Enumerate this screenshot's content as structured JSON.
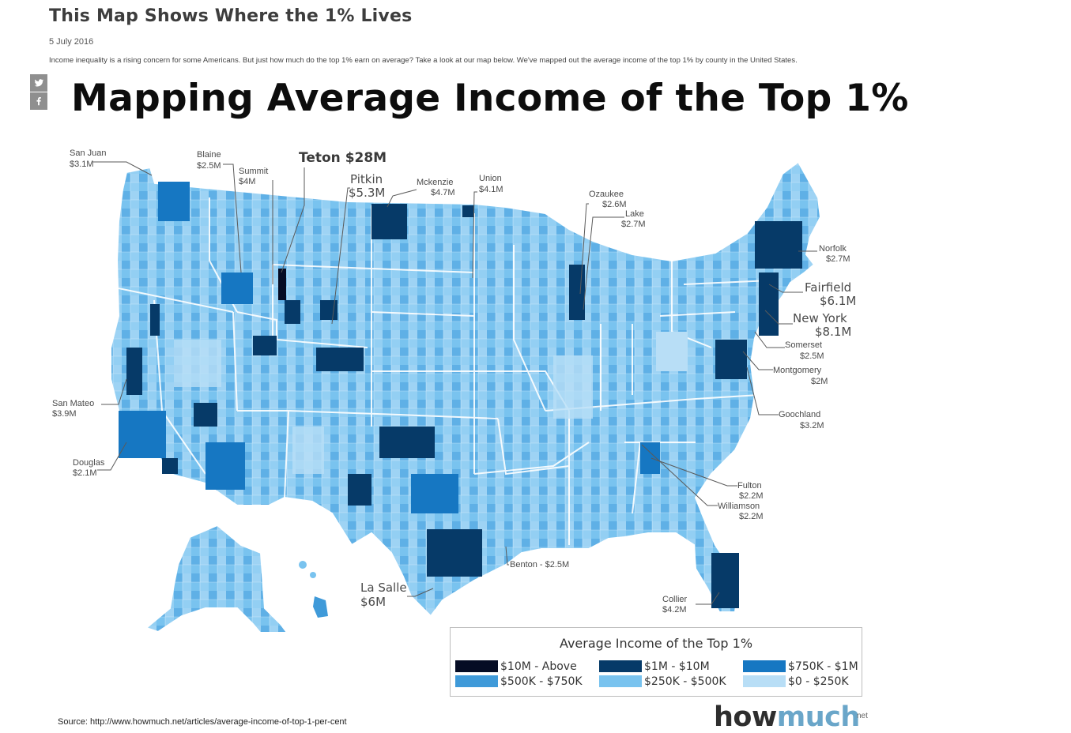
{
  "article": {
    "title": "This Map Shows Where the 1% Lives",
    "date": "5 July 2016",
    "intro": "Income inequality is a rising concern for some Americans. But just how much do the top 1% earn on average? Take a look at our map below. We've mapped out the average income of the top 1% by county in the United States."
  },
  "share": {
    "twitter_icon": "twitter-icon",
    "facebook_icon": "facebook-icon"
  },
  "infographic": {
    "title": "Mapping Average Income of the Top 1%"
  },
  "callouts": {
    "san_juan": {
      "name": "San Juan",
      "value": "$3.1M"
    },
    "blaine": {
      "name": "Blaine",
      "value": "$2.5M"
    },
    "summit": {
      "name": "Summit",
      "value": "$4M"
    },
    "teton": {
      "text": "Teton $28M"
    },
    "pitkin": {
      "name": "Pitkin",
      "value": "$5.3M"
    },
    "mckenzie": {
      "name": "Mckenzie",
      "value": "$4.7M"
    },
    "union": {
      "name": "Union",
      "value": "$4.1M"
    },
    "ozaukee": {
      "name": "Ozaukee",
      "value": "$2.6M"
    },
    "lake": {
      "name": "Lake",
      "value": "$2.7M"
    },
    "norfolk": {
      "name": "Norfolk",
      "value": "$2.7M"
    },
    "fairfield": {
      "name": "Fairfield",
      "value": "$6.1M"
    },
    "new_york": {
      "name": "New York",
      "value": "$8.1M"
    },
    "somerset": {
      "name": "Somerset",
      "value": "$2.5M"
    },
    "montgomery": {
      "name": "Montgomery",
      "value": "$2M"
    },
    "goochland": {
      "name": "Goochland",
      "value": "$3.2M"
    },
    "fulton": {
      "name": "Fulton",
      "value": "$2.2M"
    },
    "williamson": {
      "name": "Williamson",
      "value": "$2.2M"
    },
    "benton": {
      "text": "Benton - $2.5M"
    },
    "collier": {
      "name": "Collier",
      "value": "$4.2M"
    },
    "la_salle": {
      "name": "La Salle",
      "value": "$6M"
    },
    "douglas": {
      "name": "Douglas",
      "value": "$2.1M"
    },
    "san_mateo": {
      "name": "San Mateo",
      "value": "$3.9M"
    }
  },
  "legend": {
    "title": "Average Income of the Top 1%",
    "items": [
      {
        "label": "$10M - Above",
        "color": "#050c24"
      },
      {
        "label": "$1M - $10M",
        "color": "#063a68"
      },
      {
        "label": "$750K - $1M",
        "color": "#1677c2"
      },
      {
        "label": "$500K - $750K",
        "color": "#3f9ad9"
      },
      {
        "label": "$250K - $500K",
        "color": "#79c3ef"
      },
      {
        "label": "$0 - $250K",
        "color": "#b8def6"
      }
    ]
  },
  "source": "Source: http://www.howmuch.net/articles/average-income-of-top-1-per-cent",
  "brand": {
    "how": "how",
    "much": "much",
    "net": "net"
  }
}
